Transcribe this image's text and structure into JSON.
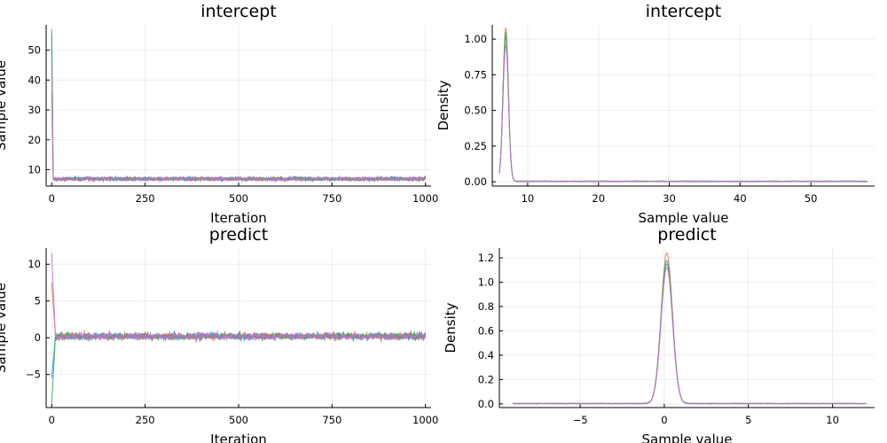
{
  "chart_data": [
    {
      "type": "line",
      "title": "intercept",
      "xlabel": "Iteration",
      "ylabel": "Sample value",
      "xlim": [
        -15,
        1015
      ],
      "ylim": [
        4.5,
        58.5
      ],
      "xticks": [
        0,
        250,
        500,
        750,
        1000
      ],
      "yticks": [
        10,
        20,
        30,
        40,
        50
      ],
      "grid": true,
      "legend": "none",
      "series": [
        {
          "color": "#009AFA",
          "start": 55,
          "level": 6.9,
          "noise": 0.45,
          "burn": 4
        },
        {
          "color": "#E36F47",
          "start": 36,
          "level": 6.9,
          "noise": 0.45,
          "burn": 4
        },
        {
          "color": "#3EA44E",
          "start": 57,
          "level": 6.9,
          "noise": 0.45,
          "burn": 4
        },
        {
          "color": "#C271D2",
          "start": 45,
          "level": 6.9,
          "noise": 0.45,
          "burn": 4
        }
      ]
    },
    {
      "type": "line",
      "title": "intercept",
      "xlabel": "Sample value",
      "ylabel": "Density",
      "xlim": [
        5,
        59
      ],
      "ylim": [
        -0.03,
        1.1
      ],
      "xticks": [
        10,
        20,
        30,
        40,
        50
      ],
      "yticks": [
        0.0,
        0.25,
        0.5,
        0.75,
        1.0
      ],
      "ytick_labels": [
        "0.00",
        "0.25",
        "0.50",
        "0.75",
        "1.00"
      ],
      "grid": true,
      "legend": "none",
      "density": {
        "x_min": 6,
        "x_max": 58,
        "mode": 6.9,
        "sigma": 0.38
      },
      "series": [
        {
          "color": "#009AFA",
          "peak": 1.02
        },
        {
          "color": "#E36F47",
          "peak": 1.08
        },
        {
          "color": "#3EA44E",
          "peak": 1.05
        },
        {
          "color": "#C271D2",
          "peak": 0.96
        }
      ]
    },
    {
      "type": "line",
      "title": "predict",
      "xlabel": "Iteration",
      "ylabel": "Sample value",
      "xlim": [
        -15,
        1015
      ],
      "ylim": [
        -9.5,
        12.2
      ],
      "xticks": [
        0,
        250,
        500,
        750,
        1000
      ],
      "yticks": [
        -5,
        0,
        5,
        10
      ],
      "grid": true,
      "legend": "none",
      "series": [
        {
          "color": "#009AFA",
          "start": -5.5,
          "level": 0.2,
          "noise": 0.35,
          "burn": 10
        },
        {
          "color": "#E36F47",
          "start": 7.5,
          "level": 0.2,
          "noise": 0.35,
          "burn": 10
        },
        {
          "color": "#3EA44E",
          "start": -9.0,
          "level": 0.2,
          "noise": 0.35,
          "burn": 10
        },
        {
          "color": "#C271D2",
          "start": 11.5,
          "level": 0.2,
          "noise": 0.35,
          "burn": 10
        }
      ]
    },
    {
      "type": "line",
      "title": "predict",
      "xlabel": "Sample value",
      "ylabel": "Density",
      "xlim": [
        -9.8,
        12.5
      ],
      "ylim": [
        -0.03,
        1.28
      ],
      "xticks": [
        -5,
        0,
        5,
        10
      ],
      "yticks": [
        0.0,
        0.2,
        0.4,
        0.6,
        0.8,
        1.0,
        1.2
      ],
      "ytick_labels": [
        "0.0",
        "0.2",
        "0.4",
        "0.6",
        "0.8",
        "1.0",
        "1.2"
      ],
      "grid": true,
      "legend": "none",
      "density": {
        "x_min": -9,
        "x_max": 12,
        "mode": 0.15,
        "sigma": 0.34
      },
      "series": [
        {
          "color": "#009AFA",
          "peak": 1.15
        },
        {
          "color": "#E36F47",
          "peak": 1.24
        },
        {
          "color": "#3EA44E",
          "peak": 1.18
        },
        {
          "color": "#C271D2",
          "peak": 1.12
        }
      ]
    }
  ]
}
